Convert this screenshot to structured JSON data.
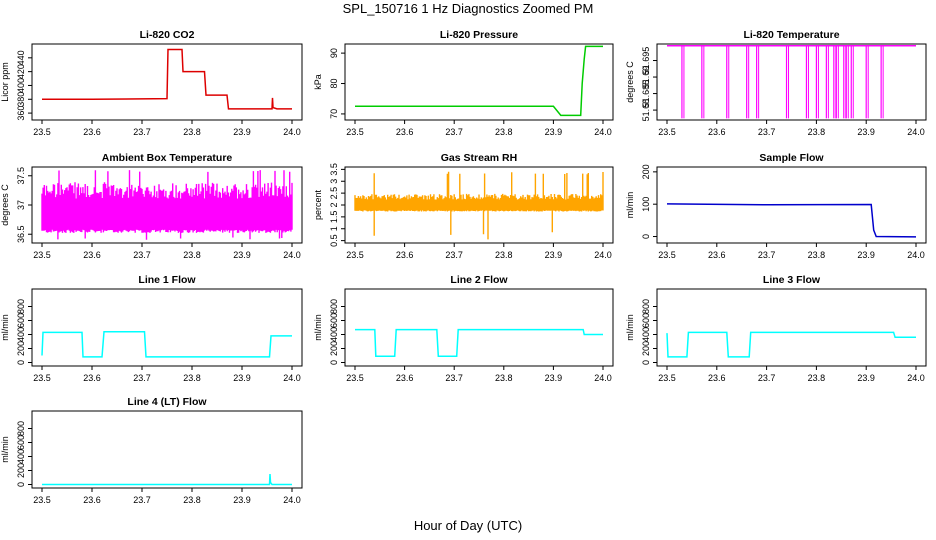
{
  "title": "SPL_150716  1 Hz Diagnostics Zoomed PM",
  "xlabel": "Hour of Day (UTC)",
  "chart_data": [
    {
      "type": "line",
      "title": "Li-820 CO2",
      "ylabel": "Licor ppm",
      "color": "#dd0000",
      "xlim": [
        23.5,
        24.0
      ],
      "ylim": [
        350,
        460
      ],
      "xticks": [
        "23.5",
        "23.6",
        "23.7",
        "23.8",
        "23.9",
        "24.0"
      ],
      "yticks": [
        360,
        380,
        400,
        420,
        440
      ],
      "x": [
        23.5,
        23.6,
        23.75,
        23.752,
        23.78,
        23.782,
        23.825,
        23.828,
        23.87,
        23.873,
        23.96,
        23.961,
        23.962,
        23.97,
        24.0
      ],
      "y": [
        380,
        380,
        381,
        452,
        452,
        420,
        420,
        386,
        386,
        366,
        366,
        382,
        368,
        366,
        366
      ]
    },
    {
      "type": "line",
      "title": "Li-820 Pressure",
      "ylabel": "kPa",
      "color": "#00cc00",
      "xlim": [
        23.5,
        24.0
      ],
      "ylim": [
        68,
        93
      ],
      "xticks": [
        "23.5",
        "23.6",
        "23.7",
        "23.8",
        "23.9",
        "24.0"
      ],
      "yticks": [
        70,
        80,
        90
      ],
      "x": [
        23.5,
        23.9,
        23.915,
        23.955,
        23.958,
        23.962,
        23.965,
        24.0
      ],
      "y": [
        72.5,
        72.5,
        69.5,
        69.5,
        80,
        88,
        92.2,
        92.2
      ]
    },
    {
      "type": "line",
      "title": "Li-820 Temperature",
      "ylabel": "degrees C",
      "color": "#ff00ff",
      "xlim": [
        23.5,
        24.0
      ],
      "ylim": [
        51.677,
        51.7
      ],
      "xticks": [
        "23.5",
        "23.6",
        "23.7",
        "23.8",
        "23.9",
        "24.0"
      ],
      "yticks": [
        51.68,
        51.685,
        51.69,
        51.695
      ],
      "x": [
        23.5,
        24.0
      ],
      "y": [
        51.6995,
        51.6995
      ],
      "dips_x": [
        23.53,
        23.57,
        23.62,
        23.66,
        23.68,
        23.74,
        23.78,
        23.8,
        23.82,
        23.835,
        23.84,
        23.855,
        23.86,
        23.87,
        23.9,
        23.93
      ],
      "dips_y": 51.6775
    },
    {
      "type": "line",
      "title": "Ambient Box Temperature",
      "ylabel": "degrees C",
      "color": "#ff00ff",
      "xlim": [
        23.5,
        24.0
      ],
      "ylim": [
        36.35,
        37.65
      ],
      "xticks": [
        "23.5",
        "23.6",
        "23.7",
        "23.8",
        "23.9",
        "24.0"
      ],
      "yticks": [
        36.5,
        37.0,
        37.5
      ],
      "x": [
        23.5,
        24.0
      ],
      "y_low": 36.55,
      "y_high": 37.25,
      "y_min": 36.4,
      "y_max": 37.6
    },
    {
      "type": "line",
      "title": "Gas Stream RH",
      "ylabel": "percent",
      "color": "#ffa500",
      "xlim": [
        23.5,
        24.0
      ],
      "ylim": [
        0.4,
        3.6
      ],
      "xticks": [
        "23.5",
        "23.6",
        "23.7",
        "23.8",
        "23.9",
        "24.0"
      ],
      "yticks": [
        0.5,
        1.0,
        1.5,
        2.0,
        2.5,
        3.0,
        3.5
      ],
      "x": [
        23.5,
        24.0
      ],
      "y_low": 1.75,
      "y_high": 2.35,
      "y_min": 0.5,
      "y_max": 3.4
    },
    {
      "type": "line",
      "title": "Sample Flow",
      "ylabel": "ml/min",
      "color": "#0000cc",
      "xlim": [
        23.5,
        24.0
      ],
      "ylim": [
        -20,
        215
      ],
      "xticks": [
        "23.5",
        "23.6",
        "23.7",
        "23.8",
        "23.9",
        "24.0"
      ],
      "yticks": [
        0,
        100,
        200
      ],
      "x": [
        23.5,
        23.7,
        23.91,
        23.915,
        23.92,
        24.0
      ],
      "y": [
        101,
        98,
        99,
        20,
        0,
        -1
      ]
    },
    {
      "type": "line",
      "title": "Line 1 Flow",
      "ylabel": "ml/min",
      "color": "#00ffff",
      "xlim": [
        23.5,
        24.0
      ],
      "ylim": [
        -50,
        1050
      ],
      "xticks": [
        "23.5",
        "23.6",
        "23.7",
        "23.8",
        "23.9",
        "24.0"
      ],
      "yticks": [
        0,
        200,
        400,
        600,
        800
      ],
      "x": [
        23.5,
        23.502,
        23.58,
        23.582,
        23.62,
        23.624,
        23.705,
        23.708,
        23.955,
        23.958,
        24.0
      ],
      "y": [
        100,
        430,
        430,
        80,
        80,
        440,
        440,
        80,
        80,
        380,
        380
      ]
    },
    {
      "type": "line",
      "title": "Line 2 Flow",
      "ylabel": "ml/min",
      "color": "#00ffff",
      "xlim": [
        23.5,
        24.0
      ],
      "ylim": [
        -50,
        1050
      ],
      "xticks": [
        "23.5",
        "23.6",
        "23.7",
        "23.8",
        "23.9",
        "24.0"
      ],
      "yticks": [
        0,
        200,
        400,
        600,
        800
      ],
      "x": [
        23.5,
        23.54,
        23.542,
        23.58,
        23.583,
        23.665,
        23.668,
        23.705,
        23.708,
        23.96,
        23.962,
        24.0
      ],
      "y": [
        470,
        470,
        90,
        90,
        470,
        470,
        90,
        90,
        470,
        470,
        400,
        400
      ]
    },
    {
      "type": "line",
      "title": "Line 3 Flow",
      "ylabel": "ml/min",
      "color": "#00ffff",
      "xlim": [
        23.5,
        24.0
      ],
      "ylim": [
        -50,
        1050
      ],
      "xticks": [
        "23.5",
        "23.6",
        "23.7",
        "23.8",
        "23.9",
        "24.0"
      ],
      "yticks": [
        0,
        200,
        400,
        600,
        800
      ],
      "x": [
        23.5,
        23.502,
        23.54,
        23.543,
        23.62,
        23.623,
        23.665,
        23.668,
        23.955,
        23.958,
        24.0
      ],
      "y": [
        420,
        80,
        80,
        430,
        430,
        80,
        80,
        430,
        430,
        360,
        360
      ]
    },
    {
      "type": "line",
      "title": "Line 4 (LT) Flow",
      "ylabel": "ml/min",
      "color": "#00ffff",
      "xlim": [
        23.5,
        24.0
      ],
      "ylim": [
        -50,
        1050
      ],
      "xticks": [
        "23.5",
        "23.6",
        "23.7",
        "23.8",
        "23.9",
        "24.0"
      ],
      "yticks": [
        0,
        200,
        400,
        600,
        800
      ],
      "x": [
        23.5,
        23.955,
        23.956,
        23.957,
        23.96,
        24.0
      ],
      "y": [
        0,
        0,
        150,
        30,
        0,
        0
      ]
    }
  ]
}
